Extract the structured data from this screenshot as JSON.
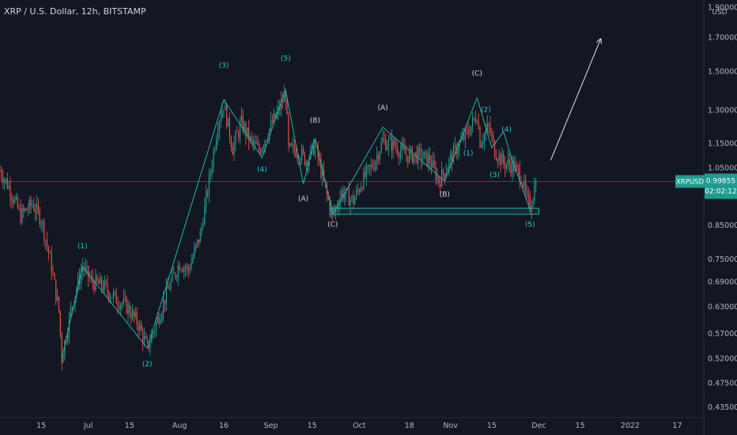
{
  "header": {
    "title": "XRP / U.S. Dollar, 12h, BITSTAMP"
  },
  "scale": {
    "currency": "USD"
  },
  "colors": {
    "background": "#131722",
    "up": "#26a69a",
    "down": "#ef5350",
    "wave_line": "#1fb5a6",
    "label_teal": "#26c6da",
    "label_white": "#d1d4dc",
    "axis_text": "#b2b5be",
    "price_tag": "#1f9c8f",
    "arrow": "#e0e3eb"
  },
  "chart_data": {
    "type": "candlestick",
    "title": "XRP / U.S. Dollar, 12h, BITSTAMP",
    "symbol": "XRPUSD",
    "last_price": 0.99855,
    "last_price_label": "0.99855",
    "countdown": "02:02:12",
    "y_scale": "log",
    "ylim": [
      0.418,
      1.95
    ],
    "y_ticks": [
      {
        "value": 1.9,
        "label": "1.90000"
      },
      {
        "value": 1.7,
        "label": "1.70000"
      },
      {
        "value": 1.5,
        "label": "1.50000"
      },
      {
        "value": 1.3,
        "label": "1.30000"
      },
      {
        "value": 1.15,
        "label": "1.15000"
      },
      {
        "value": 1.05,
        "label": "1.05000"
      },
      {
        "value": 0.85,
        "label": "0.85000"
      },
      {
        "value": 0.75,
        "label": "0.75000"
      },
      {
        "value": 0.69,
        "label": "0.69000"
      },
      {
        "value": 0.63,
        "label": "0.63000"
      },
      {
        "value": 0.57,
        "label": "0.57000"
      },
      {
        "value": 0.52,
        "label": "0.52000"
      },
      {
        "value": 0.475,
        "label": "0.47500"
      },
      {
        "value": 0.435,
        "label": "0.43500"
      }
    ],
    "x_ticks": [
      {
        "date": "2021-06-15",
        "label": "15"
      },
      {
        "date": "2021-07-01",
        "label": "Jul"
      },
      {
        "date": "2021-07-15",
        "label": "15"
      },
      {
        "date": "2021-08-01",
        "label": "Aug"
      },
      {
        "date": "2021-08-16",
        "label": "16"
      },
      {
        "date": "2021-09-01",
        "label": "Sep"
      },
      {
        "date": "2021-09-15",
        "label": "15"
      },
      {
        "date": "2021-10-01",
        "label": "Oct"
      },
      {
        "date": "2021-10-18",
        "label": "18"
      },
      {
        "date": "2021-11-01",
        "label": "Nov"
      },
      {
        "date": "2021-11-15",
        "label": "15"
      },
      {
        "date": "2021-12-01",
        "label": "Dec"
      },
      {
        "date": "2021-12-15",
        "label": "15"
      },
      {
        "date": "2022-01-01",
        "label": "2022"
      },
      {
        "date": "2022-01-17",
        "label": "17"
      }
    ],
    "price_path": [
      [
        "2021-06-01",
        1.04
      ],
      [
        "2021-06-04",
        0.98
      ],
      [
        "2021-06-08",
        0.88
      ],
      [
        "2021-06-12",
        0.92
      ],
      [
        "2021-06-15",
        0.87
      ],
      [
        "2021-06-18",
        0.75
      ],
      [
        "2021-06-21",
        0.62
      ],
      [
        "2021-06-22",
        0.52
      ],
      [
        "2021-06-25",
        0.62
      ],
      [
        "2021-06-29",
        0.73
      ],
      [
        "2021-07-02",
        0.69
      ],
      [
        "2021-07-06",
        0.68
      ],
      [
        "2021-07-10",
        0.65
      ],
      [
        "2021-07-14",
        0.63
      ],
      [
        "2021-07-18",
        0.59
      ],
      [
        "2021-07-21",
        0.54
      ],
      [
        "2021-07-24",
        0.59
      ],
      [
        "2021-07-28",
        0.67
      ],
      [
        "2021-08-01",
        0.74
      ],
      [
        "2021-08-04",
        0.72
      ],
      [
        "2021-08-08",
        0.82
      ],
      [
        "2021-08-11",
        1.0
      ],
      [
        "2021-08-14",
        1.24
      ],
      [
        "2021-08-16",
        1.33
      ],
      [
        "2021-08-19",
        1.13
      ],
      [
        "2021-08-22",
        1.24
      ],
      [
        "2021-08-25",
        1.16
      ],
      [
        "2021-08-28",
        1.12
      ],
      [
        "2021-08-31",
        1.2
      ],
      [
        "2021-09-03",
        1.28
      ],
      [
        "2021-09-06",
        1.38
      ],
      [
        "2021-09-07",
        1.12
      ],
      [
        "2021-09-10",
        1.12
      ],
      [
        "2021-09-13",
        1.08
      ],
      [
        "2021-09-16",
        1.14
      ],
      [
        "2021-09-20",
        0.95
      ],
      [
        "2021-09-22",
        0.88
      ],
      [
        "2021-09-25",
        0.96
      ],
      [
        "2021-09-29",
        0.93
      ],
      [
        "2021-10-02",
        1.0
      ],
      [
        "2021-10-06",
        1.07
      ],
      [
        "2021-10-09",
        1.16
      ],
      [
        "2021-10-13",
        1.14
      ],
      [
        "2021-10-17",
        1.1
      ],
      [
        "2021-10-21",
        1.1
      ],
      [
        "2021-10-25",
        1.08
      ],
      [
        "2021-10-28",
        1.0
      ],
      [
        "2021-10-31",
        1.06
      ],
      [
        "2021-11-03",
        1.13
      ],
      [
        "2021-11-07",
        1.2
      ],
      [
        "2021-11-10",
        1.28
      ],
      [
        "2021-11-11",
        1.16
      ],
      [
        "2021-11-14",
        1.22
      ],
      [
        "2021-11-16",
        1.12
      ],
      [
        "2021-11-19",
        1.07
      ],
      [
        "2021-11-22",
        1.06
      ],
      [
        "2021-11-25",
        1.02
      ],
      [
        "2021-11-27",
        0.93
      ],
      [
        "2021-11-28",
        0.91
      ],
      [
        "2021-11-30",
        0.99855
      ]
    ],
    "support_zone": {
      "from": "2021-09-21",
      "to": "2021-12-01",
      "low": 0.885,
      "high": 0.905
    },
    "wave_lines": [
      {
        "name": "impulse-1",
        "points": [
          [
            "2021-06-22",
            0.52
          ],
          [
            "2021-06-29",
            0.73
          ],
          [
            "2021-07-21",
            0.54
          ],
          [
            "2021-08-16",
            1.35
          ],
          [
            "2021-08-29",
            1.09
          ],
          [
            "2021-09-06",
            1.4
          ]
        ]
      },
      {
        "name": "correction-abc",
        "points": [
          [
            "2021-09-06",
            1.4
          ],
          [
            "2021-09-12",
            0.99
          ],
          [
            "2021-09-16",
            1.17
          ],
          [
            "2021-09-22",
            0.885
          ]
        ]
      },
      {
        "name": "correction-abc-2",
        "points": [
          [
            "2021-09-22",
            0.885
          ],
          [
            "2021-10-09",
            1.22
          ],
          [
            "2021-10-30",
            1.0
          ],
          [
            "2021-11-10",
            1.36
          ]
        ]
      },
      {
        "name": "impulse-2",
        "points": [
          [
            "2021-11-10",
            1.36
          ],
          [
            "2021-11-15",
            1.13
          ],
          [
            "2021-11-19",
            1.2
          ],
          [
            "2021-11-22",
            1.08
          ],
          [
            "2021-11-28",
            0.9
          ]
        ]
      },
      {
        "name": "projection-arrow",
        "points": [
          [
            "2021-12-05",
            1.08
          ],
          [
            "2021-12-22",
            1.69
          ]
        ]
      }
    ],
    "annotations": [
      {
        "text": "(1)",
        "date": "2021-06-29",
        "price": 0.78,
        "color": "teal"
      },
      {
        "text": "(2)",
        "date": "2021-07-21",
        "price": 0.505,
        "color": "teal"
      },
      {
        "text": "(3)",
        "date": "2021-08-16",
        "price": 1.52,
        "color": "teal"
      },
      {
        "text": "(4)",
        "date": "2021-08-29",
        "price": 1.035,
        "color": "teal"
      },
      {
        "text": "(5)",
        "date": "2021-09-06",
        "price": 1.56,
        "color": "teal"
      },
      {
        "text": "(B)",
        "date": "2021-09-16",
        "price": 1.24,
        "color": "white"
      },
      {
        "text": "(A)",
        "date": "2021-09-12",
        "price": 0.93,
        "color": "white"
      },
      {
        "text": "(C)",
        "date": "2021-09-22",
        "price": 0.845,
        "color": "white"
      },
      {
        "text": "(A)",
        "date": "2021-10-09",
        "price": 1.3,
        "color": "white"
      },
      {
        "text": "(B)",
        "date": "2021-10-30",
        "price": 0.945,
        "color": "white"
      },
      {
        "text": "(C)",
        "date": "2021-11-10",
        "price": 1.475,
        "color": "white"
      },
      {
        "text": "(2)",
        "date": "2021-11-13",
        "price": 1.29,
        "color": "teal"
      },
      {
        "text": "(1)",
        "date": "2021-11-07",
        "price": 1.1,
        "color": "teal"
      },
      {
        "text": "(4)",
        "date": "2021-11-20",
        "price": 1.2,
        "color": "teal"
      },
      {
        "text": "(3)",
        "date": "2021-11-16",
        "price": 1.015,
        "color": "teal"
      },
      {
        "text": "(5)",
        "date": "2021-11-28",
        "price": 0.845,
        "color": "teal"
      }
    ]
  }
}
